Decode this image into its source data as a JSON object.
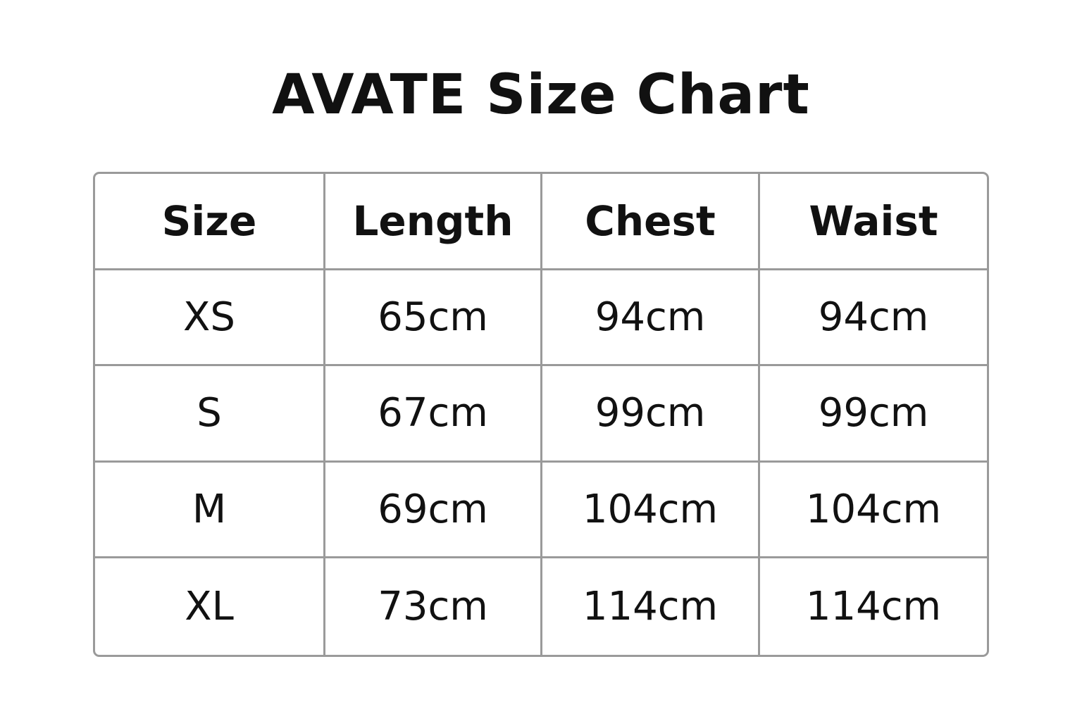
{
  "title": "AVATE Size Chart",
  "table": {
    "headers": [
      "Size",
      "Length",
      "Chest",
      "Waist"
    ],
    "rows": [
      [
        "XS",
        "65cm",
        "94cm",
        "94cm"
      ],
      [
        "S",
        "67cm",
        "99cm",
        "99cm"
      ],
      [
        "M",
        "69cm",
        "104cm",
        "104cm"
      ],
      [
        "XL",
        "73cm",
        "114cm",
        "114cm"
      ]
    ]
  },
  "colors": {
    "border": "#9a9a9a",
    "text": "#111111",
    "background": "#ffffff"
  }
}
